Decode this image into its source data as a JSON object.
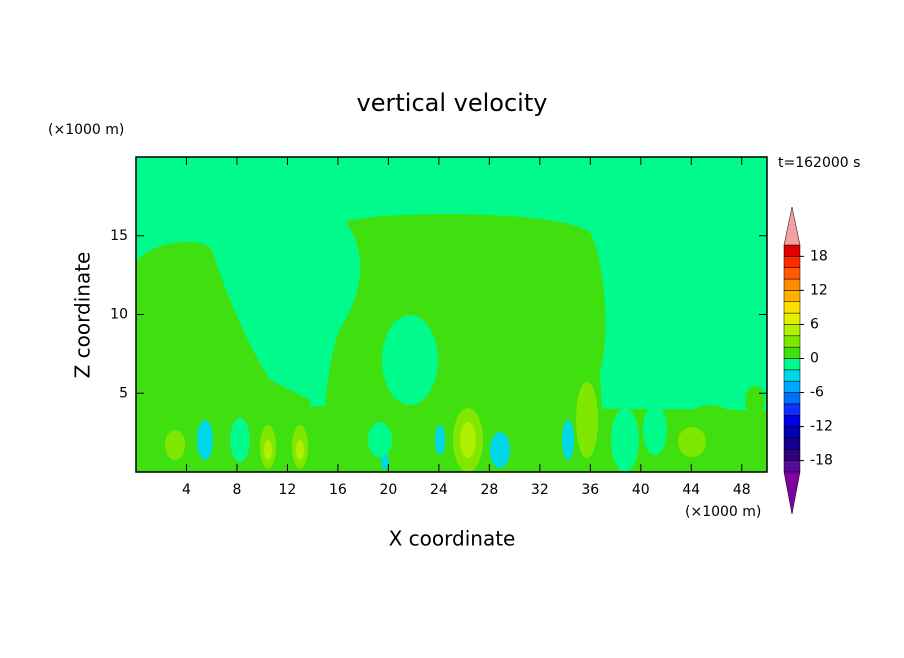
{
  "chart_data": {
    "type": "contour",
    "title": "vertical velocity",
    "xlabel": "X coordinate",
    "ylabel": "Z coordinate",
    "x_unit": "(×1000 m)",
    "y_unit": "(×1000 m)",
    "time_label": "t=162000 s",
    "xlim": [
      0,
      50
    ],
    "ylim": [
      0,
      20
    ],
    "xticks": [
      4,
      8,
      12,
      16,
      20,
      24,
      28,
      32,
      36,
      40,
      44,
      48
    ],
    "yticks": [
      5,
      10,
      15
    ],
    "levels": [
      -20,
      -18,
      -16,
      -14,
      -12,
      -10,
      -8,
      -6,
      -4,
      -2,
      0,
      2,
      4,
      6,
      8,
      10,
      12,
      14,
      16,
      18,
      20
    ],
    "colors": [
      "#5a0a9a",
      "#30007a",
      "#140090",
      "#0000b4",
      "#0000e0",
      "#1030ff",
      "#0070ff",
      "#00a8ff",
      "#00d8e8",
      "#00fa8c",
      "#40e010",
      "#80e800",
      "#b0f000",
      "#e0f000",
      "#ffe000",
      "#ffb000",
      "#ff8c00",
      "#ff5a00",
      "#ff2a00",
      "#e00000"
    ],
    "over_color": "#f4a0a0",
    "under_color": "#8000a0",
    "colorbar_ticks": [
      -18,
      -12,
      -6,
      0,
      6,
      12,
      18
    ]
  }
}
